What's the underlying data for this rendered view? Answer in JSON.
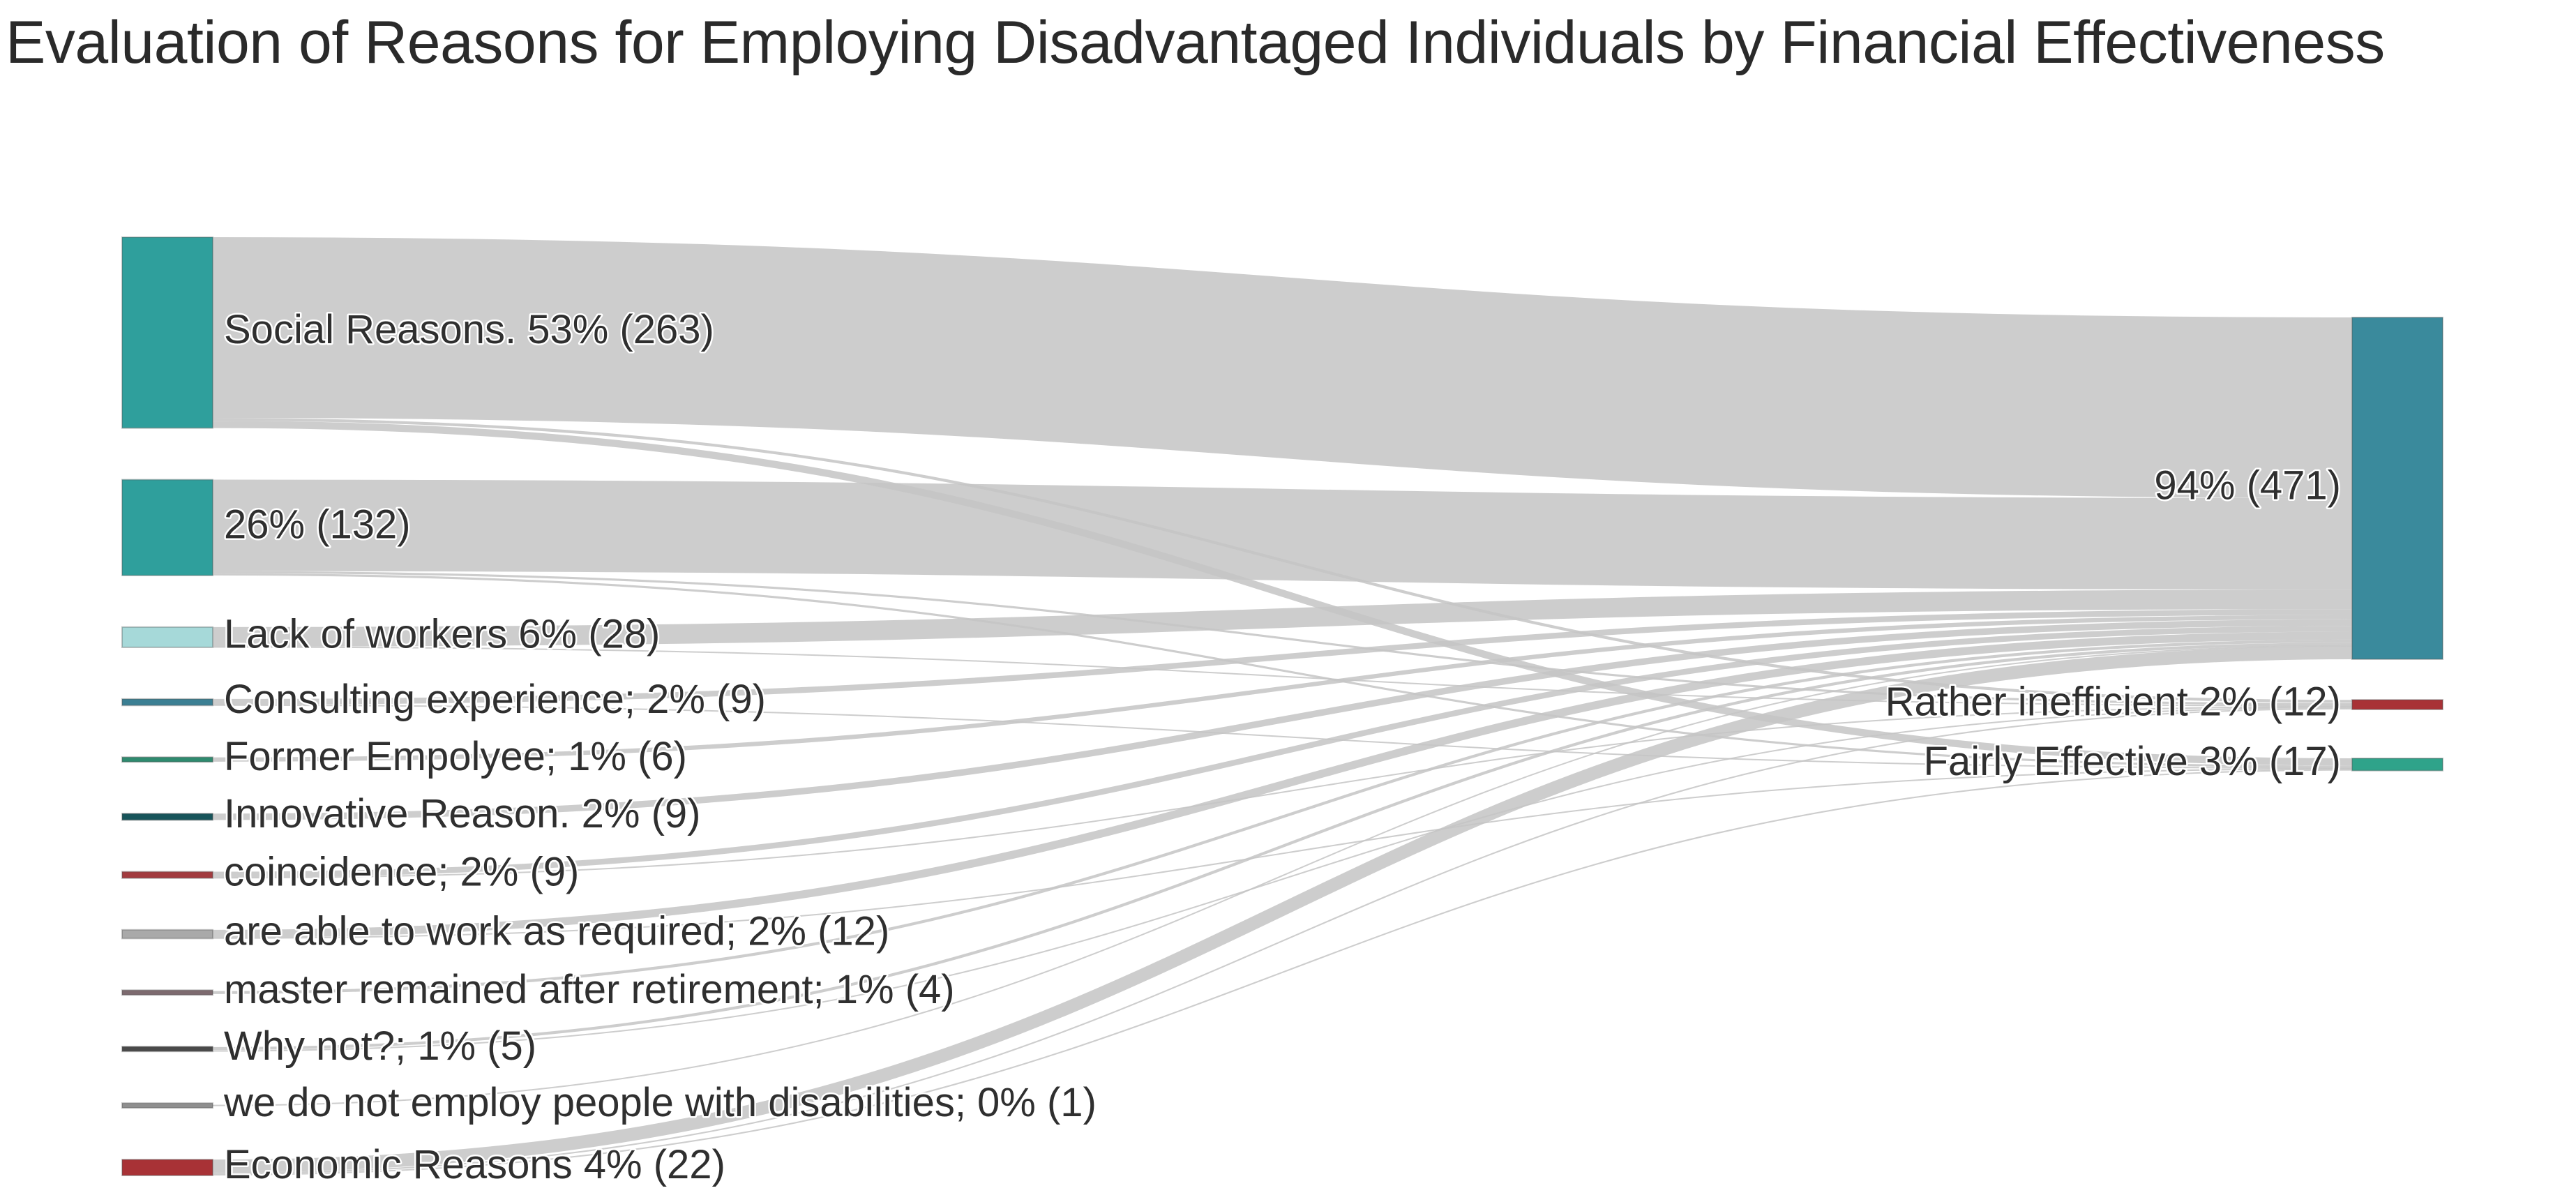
{
  "chart_data": {
    "type": "sankey",
    "title": "Evaluation of Reasons for Employing Disadvantaged Individuals by Financial Effectiveness",
    "link_color": "#c4c4c4",
    "sources": [
      {
        "id": "social",
        "label": "Social Reasons. 53% (263)",
        "value": 263,
        "color": "#2f9f9c"
      },
      {
        "id": "unnamed",
        "label": "26% (132)",
        "value": 132,
        "color": "#2f9f9c"
      },
      {
        "id": "lack",
        "label": "Lack of workers 6% (28)",
        "value": 28,
        "color": "#a6d9d9"
      },
      {
        "id": "consulting",
        "label": "Consulting experience; 2% (9)",
        "value": 9,
        "color": "#3b7f93"
      },
      {
        "id": "former",
        "label": "Former Empolyee; 1% (6)",
        "value": 6,
        "color": "#2e8b6f"
      },
      {
        "id": "innovative",
        "label": "Innovative Reason. 2% (9)",
        "value": 9,
        "color": "#17545a"
      },
      {
        "id": "coincidence",
        "label": "coincidence; 2% (9)",
        "value": 9,
        "color": "#a23b3f"
      },
      {
        "id": "able",
        "label": "are able to work as required; 2% (12)",
        "value": 12,
        "color": "#a9a9a9"
      },
      {
        "id": "master",
        "label": "master remained after retirement; 1% (4)",
        "value": 4,
        "color": "#7d6a6f"
      },
      {
        "id": "whynot",
        "label": "Why not?; 1% (5)",
        "value": 5,
        "color": "#4a4a4a"
      },
      {
        "id": "nodis",
        "label": "we do not employ people with disabilities; 0% (1)",
        "value": 1,
        "color": "#8f8f8f"
      },
      {
        "id": "economic",
        "label": "Economic Reasons 4% (22)",
        "value": 22,
        "color": "#a83236"
      }
    ],
    "targets": [
      {
        "id": "t94",
        "label": "94% (471)",
        "value": 471,
        "color": "#3a8a9c"
      },
      {
        "id": "rather",
        "label": "Rather inefficient 2% (12)",
        "value": 12,
        "color": "#a83236"
      },
      {
        "id": "fairly",
        "label": "Fairly Effective 3% (17)",
        "value": 17,
        "color": "#2fa38a"
      }
    ],
    "links": [
      {
        "source": "social",
        "target": "t94",
        "value": 249
      },
      {
        "source": "social",
        "target": "rather",
        "value": 4
      },
      {
        "source": "social",
        "target": "fairly",
        "value": 10
      },
      {
        "source": "unnamed",
        "target": "t94",
        "value": 126
      },
      {
        "source": "unnamed",
        "target": "rather",
        "value": 3
      },
      {
        "source": "unnamed",
        "target": "fairly",
        "value": 3
      },
      {
        "source": "lack",
        "target": "t94",
        "value": 27
      },
      {
        "source": "lack",
        "target": "rather",
        "value": 1
      },
      {
        "source": "consulting",
        "target": "t94",
        "value": 8
      },
      {
        "source": "consulting",
        "target": "fairly",
        "value": 1
      },
      {
        "source": "former",
        "target": "t94",
        "value": 6
      },
      {
        "source": "innovative",
        "target": "t94",
        "value": 9
      },
      {
        "source": "coincidence",
        "target": "t94",
        "value": 8
      },
      {
        "source": "coincidence",
        "target": "rather",
        "value": 1
      },
      {
        "source": "able",
        "target": "t94",
        "value": 11
      },
      {
        "source": "able",
        "target": "fairly",
        "value": 1
      },
      {
        "source": "master",
        "target": "t94",
        "value": 4
      },
      {
        "source": "whynot",
        "target": "t94",
        "value": 4
      },
      {
        "source": "whynot",
        "target": "rather",
        "value": 1
      },
      {
        "source": "nodis",
        "target": "t94",
        "value": 1
      },
      {
        "source": "economic",
        "target": "t94",
        "value": 18
      },
      {
        "source": "economic",
        "target": "rather",
        "value": 2
      },
      {
        "source": "economic",
        "target": "fairly",
        "value": 2
      }
    ]
  }
}
